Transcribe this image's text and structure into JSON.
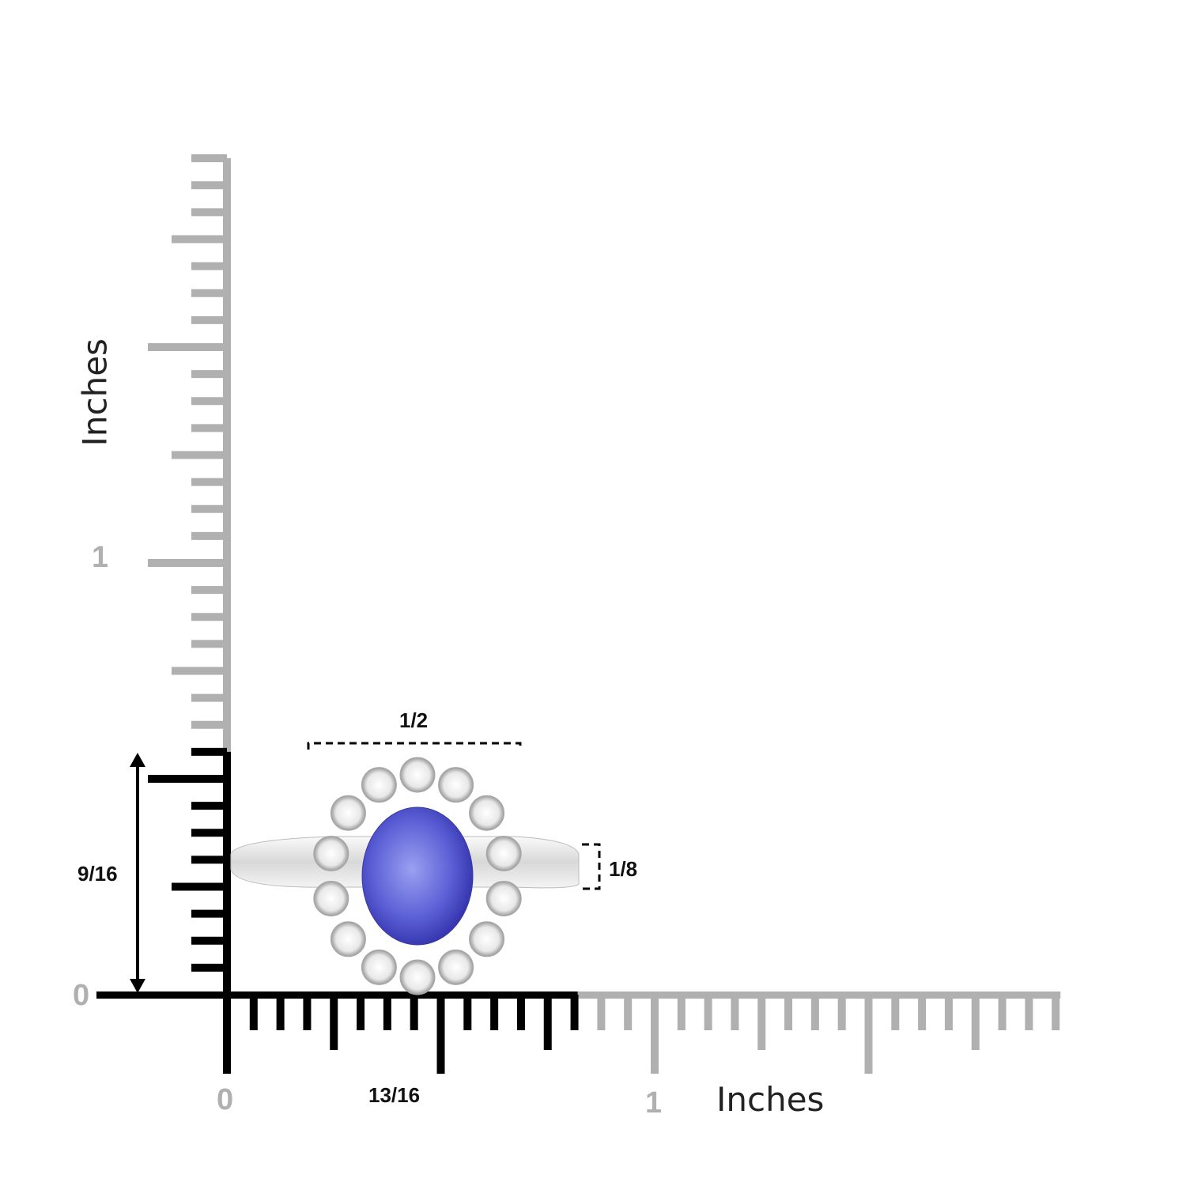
{
  "ruler": {
    "unit_label_x": "Inches",
    "unit_label_y": "Inches",
    "origin_x_label": "0",
    "origin_y_label": "0",
    "one_x_label": "1",
    "one_y_label": "1",
    "subdivision": 16,
    "x_extent_inches": 1.9375,
    "y_extent_inches": 1.9375,
    "highlight_width_inches": 0.8125,
    "highlight_height_inches": 0.5625,
    "colors": {
      "highlight": "#000000",
      "ruler": "#b0b0b0"
    }
  },
  "dimensions": {
    "width": "13/16",
    "height": "9/16",
    "center_stone": "1/2",
    "band_width": "1/8"
  },
  "product": {
    "center_stone_color": "#5b5fd6",
    "halo_stone_color": "#f2f2f2",
    "metal_color": "#e6e6e6"
  }
}
